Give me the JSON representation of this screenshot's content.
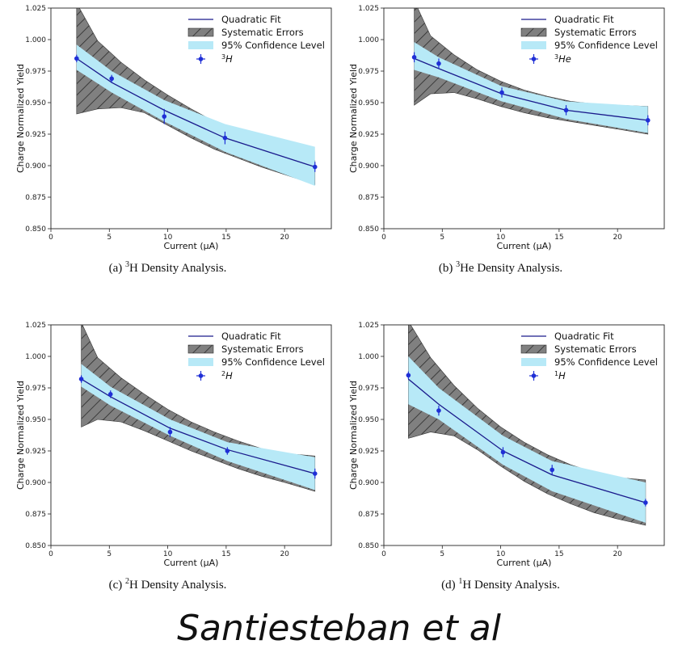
{
  "author": "Santiesteban et al",
  "colors": {
    "fit_line": "#1a1a8c",
    "confidence_fill": "#b7e9f7",
    "systematic_fill": "#808080",
    "marker": "#1f2fd6"
  },
  "chart_data": [
    {
      "type": "line",
      "caption_prefix": "(a) ",
      "caption_sup": "3",
      "caption_rest": "H Density Analysis.",
      "xlabel": "Current (μA)",
      "ylabel": "Charge Normalized Yield",
      "xlim": [
        0,
        24
      ],
      "ylim": [
        0.85,
        1.025
      ],
      "xticks": [
        0,
        5,
        10,
        15,
        20
      ],
      "yticks": [
        0.85,
        0.875,
        0.9,
        0.925,
        0.95,
        0.975,
        1.0,
        1.025
      ],
      "ytick_labels": [
        "0.850",
        "0.875",
        "0.900",
        "0.925",
        "0.950",
        "0.975",
        "1.000",
        "1.025"
      ],
      "legend_position": "top-right",
      "legend": [
        "Quadratic Fit",
        "Systematic Errors",
        "95% Confidence Level"
      ],
      "data_label_sup": "3",
      "data_label_base": "H",
      "points": [
        {
          "x": 2.2,
          "y": 0.985,
          "err": 0.003
        },
        {
          "x": 5.2,
          "y": 0.969,
          "err": 0.003
        },
        {
          "x": 9.7,
          "y": 0.939,
          "err": 0.006
        },
        {
          "x": 14.9,
          "y": 0.922,
          "err": 0.005
        },
        {
          "x": 22.6,
          "y": 0.899,
          "err": 0.004
        }
      ],
      "fit_x": [
        2.2,
        5.2,
        9.7,
        14.9,
        22.6
      ],
      "fit_y": [
        0.985,
        0.966,
        0.944,
        0.922,
        0.899
      ],
      "conf_x": [
        2.2,
        5.2,
        9.7,
        14.9,
        22.6
      ],
      "conf_upper": [
        0.996,
        0.975,
        0.952,
        0.933,
        0.915
      ],
      "conf_lower": [
        0.976,
        0.958,
        0.935,
        0.911,
        0.884
      ],
      "sys_x": [
        2.2,
        4.0,
        6.0,
        8.0,
        10.0,
        12.0,
        14.0,
        16.0,
        18.0,
        20.0,
        22.6
      ],
      "sys_upper": [
        1.029,
        0.999,
        0.982,
        0.968,
        0.956,
        0.945,
        0.935,
        0.926,
        0.918,
        0.911,
        0.904
      ],
      "sys_lower": [
        0.941,
        0.945,
        0.946,
        0.942,
        0.932,
        0.922,
        0.913,
        0.906,
        0.899,
        0.893,
        0.885
      ]
    },
    {
      "type": "line",
      "caption_prefix": "(b) ",
      "caption_sup": "3",
      "caption_rest": "He Density Analysis.",
      "xlabel": "Current (μA)",
      "ylabel": "Charge Normalized Yield",
      "xlim": [
        0,
        24
      ],
      "ylim": [
        0.85,
        1.025
      ],
      "xticks": [
        0,
        5,
        10,
        15,
        20
      ],
      "yticks": [
        0.85,
        0.875,
        0.9,
        0.925,
        0.95,
        0.975,
        1.0,
        1.025
      ],
      "ytick_labels": [
        "0.850",
        "0.875",
        "0.900",
        "0.925",
        "0.950",
        "0.975",
        "1.000",
        "1.025"
      ],
      "legend_position": "top-right",
      "legend": [
        "Quadratic Fit",
        "Systematic Errors",
        "95% Confidence Level"
      ],
      "data_label_sup": "3",
      "data_label_base": "He",
      "points": [
        {
          "x": 2.6,
          "y": 0.986,
          "err": 0.004
        },
        {
          "x": 4.7,
          "y": 0.981,
          "err": 0.004
        },
        {
          "x": 10.1,
          "y": 0.958,
          "err": 0.004
        },
        {
          "x": 15.6,
          "y": 0.944,
          "err": 0.004
        },
        {
          "x": 22.6,
          "y": 0.936,
          "err": 0.004
        }
      ],
      "fit_x": [
        2.6,
        4.7,
        10.1,
        15.6,
        22.6
      ],
      "fit_y": [
        0.985,
        0.977,
        0.957,
        0.944,
        0.936
      ],
      "conf_x": [
        2.6,
        4.7,
        10.1,
        15.6,
        22.6
      ],
      "conf_upper": [
        0.998,
        0.986,
        0.963,
        0.951,
        0.947
      ],
      "conf_lower": [
        0.976,
        0.97,
        0.951,
        0.937,
        0.926
      ],
      "sys_x": [
        2.6,
        4.0,
        6.0,
        8.0,
        10.0,
        12.0,
        14.0,
        16.0,
        18.0,
        20.0,
        22.6
      ],
      "sys_upper": [
        1.031,
        1.003,
        0.988,
        0.976,
        0.967,
        0.96,
        0.955,
        0.951,
        0.949,
        0.948,
        0.947
      ],
      "sys_lower": [
        0.948,
        0.957,
        0.958,
        0.953,
        0.947,
        0.942,
        0.938,
        0.935,
        0.932,
        0.929,
        0.925
      ]
    },
    {
      "type": "line",
      "caption_prefix": "(c) ",
      "caption_sup": "2",
      "caption_rest": "H Density Analysis.",
      "xlabel": "Current (μA)",
      "ylabel": "Charge Normalized Yield",
      "xlim": [
        0,
        24
      ],
      "ylim": [
        0.85,
        1.025
      ],
      "xticks": [
        0,
        5,
        10,
        15,
        20
      ],
      "yticks": [
        0.85,
        0.875,
        0.9,
        0.925,
        0.95,
        0.975,
        1.0,
        1.025
      ],
      "ytick_labels": [
        "0.850",
        "0.875",
        "0.900",
        "0.925",
        "0.950",
        "0.975",
        "1.000",
        "1.025"
      ],
      "legend_position": "top-right",
      "legend": [
        "Quadratic Fit",
        "Systematic Errors",
        "95% Confidence Level"
      ],
      "data_label_sup": "2",
      "data_label_base": "H",
      "points": [
        {
          "x": 2.6,
          "y": 0.982,
          "err": 0.003
        },
        {
          "x": 5.1,
          "y": 0.97,
          "err": 0.003
        },
        {
          "x": 10.2,
          "y": 0.94,
          "err": 0.004
        },
        {
          "x": 15.1,
          "y": 0.925,
          "err": 0.003
        },
        {
          "x": 22.6,
          "y": 0.907,
          "err": 0.004
        }
      ],
      "fit_x": [
        2.6,
        5.1,
        10.2,
        15.1,
        22.6
      ],
      "fit_y": [
        0.982,
        0.968,
        0.943,
        0.926,
        0.907
      ],
      "conf_x": [
        2.6,
        5.1,
        10.2,
        15.1,
        22.6
      ],
      "conf_upper": [
        0.994,
        0.976,
        0.95,
        0.932,
        0.92
      ],
      "conf_lower": [
        0.976,
        0.961,
        0.937,
        0.917,
        0.894
      ],
      "sys_x": [
        2.6,
        4.0,
        6.0,
        8.0,
        10.0,
        12.0,
        14.0,
        16.0,
        18.0,
        20.0,
        22.6
      ],
      "sys_upper": [
        1.027,
        0.999,
        0.983,
        0.97,
        0.958,
        0.948,
        0.94,
        0.933,
        0.927,
        0.923,
        0.921
      ],
      "sys_lower": [
        0.944,
        0.95,
        0.948,
        0.941,
        0.933,
        0.925,
        0.918,
        0.911,
        0.905,
        0.9,
        0.893
      ]
    },
    {
      "type": "line",
      "caption_prefix": "(d) ",
      "caption_sup": "1",
      "caption_rest": "H Density Analysis.",
      "xlabel": "Current (μA)",
      "ylabel": "Charge Normalized Yield",
      "xlim": [
        0,
        24
      ],
      "ylim": [
        0.85,
        1.025
      ],
      "xticks": [
        0,
        5,
        10,
        15,
        20
      ],
      "yticks": [
        0.85,
        0.875,
        0.9,
        0.925,
        0.95,
        0.975,
        1.0,
        1.025
      ],
      "ytick_labels": [
        "0.850",
        "0.875",
        "0.900",
        "0.925",
        "0.950",
        "0.975",
        "1.000",
        "1.025"
      ],
      "legend_position": "top-right",
      "legend": [
        "Quadratic Fit",
        "Systematic Errors",
        "95% Confidence Level"
      ],
      "data_label_sup": "1",
      "data_label_base": "H",
      "points": [
        {
          "x": 2.1,
          "y": 0.985,
          "err": 0.003
        },
        {
          "x": 4.7,
          "y": 0.957,
          "err": 0.004
        },
        {
          "x": 10.2,
          "y": 0.924,
          "err": 0.004
        },
        {
          "x": 14.4,
          "y": 0.91,
          "err": 0.004
        },
        {
          "x": 22.4,
          "y": 0.884,
          "err": 0.003
        }
      ],
      "fit_x": [
        2.1,
        4.7,
        10.2,
        14.4,
        22.4
      ],
      "fit_y": [
        0.982,
        0.962,
        0.925,
        0.906,
        0.884
      ],
      "conf_x": [
        2.1,
        4.7,
        10.2,
        14.4,
        22.4
      ],
      "conf_upper": [
        1.0,
        0.975,
        0.937,
        0.917,
        0.9
      ],
      "conf_lower": [
        0.962,
        0.95,
        0.914,
        0.893,
        0.868
      ],
      "sys_x": [
        2.1,
        4.0,
        6.0,
        8.0,
        10.0,
        12.0,
        14.0,
        16.0,
        18.0,
        20.0,
        22.4
      ],
      "sys_upper": [
        1.028,
        0.999,
        0.977,
        0.959,
        0.944,
        0.932,
        0.922,
        0.914,
        0.908,
        0.904,
        0.902
      ],
      "sys_lower": [
        0.935,
        0.94,
        0.937,
        0.926,
        0.913,
        0.901,
        0.891,
        0.883,
        0.876,
        0.871,
        0.866
      ]
    }
  ]
}
